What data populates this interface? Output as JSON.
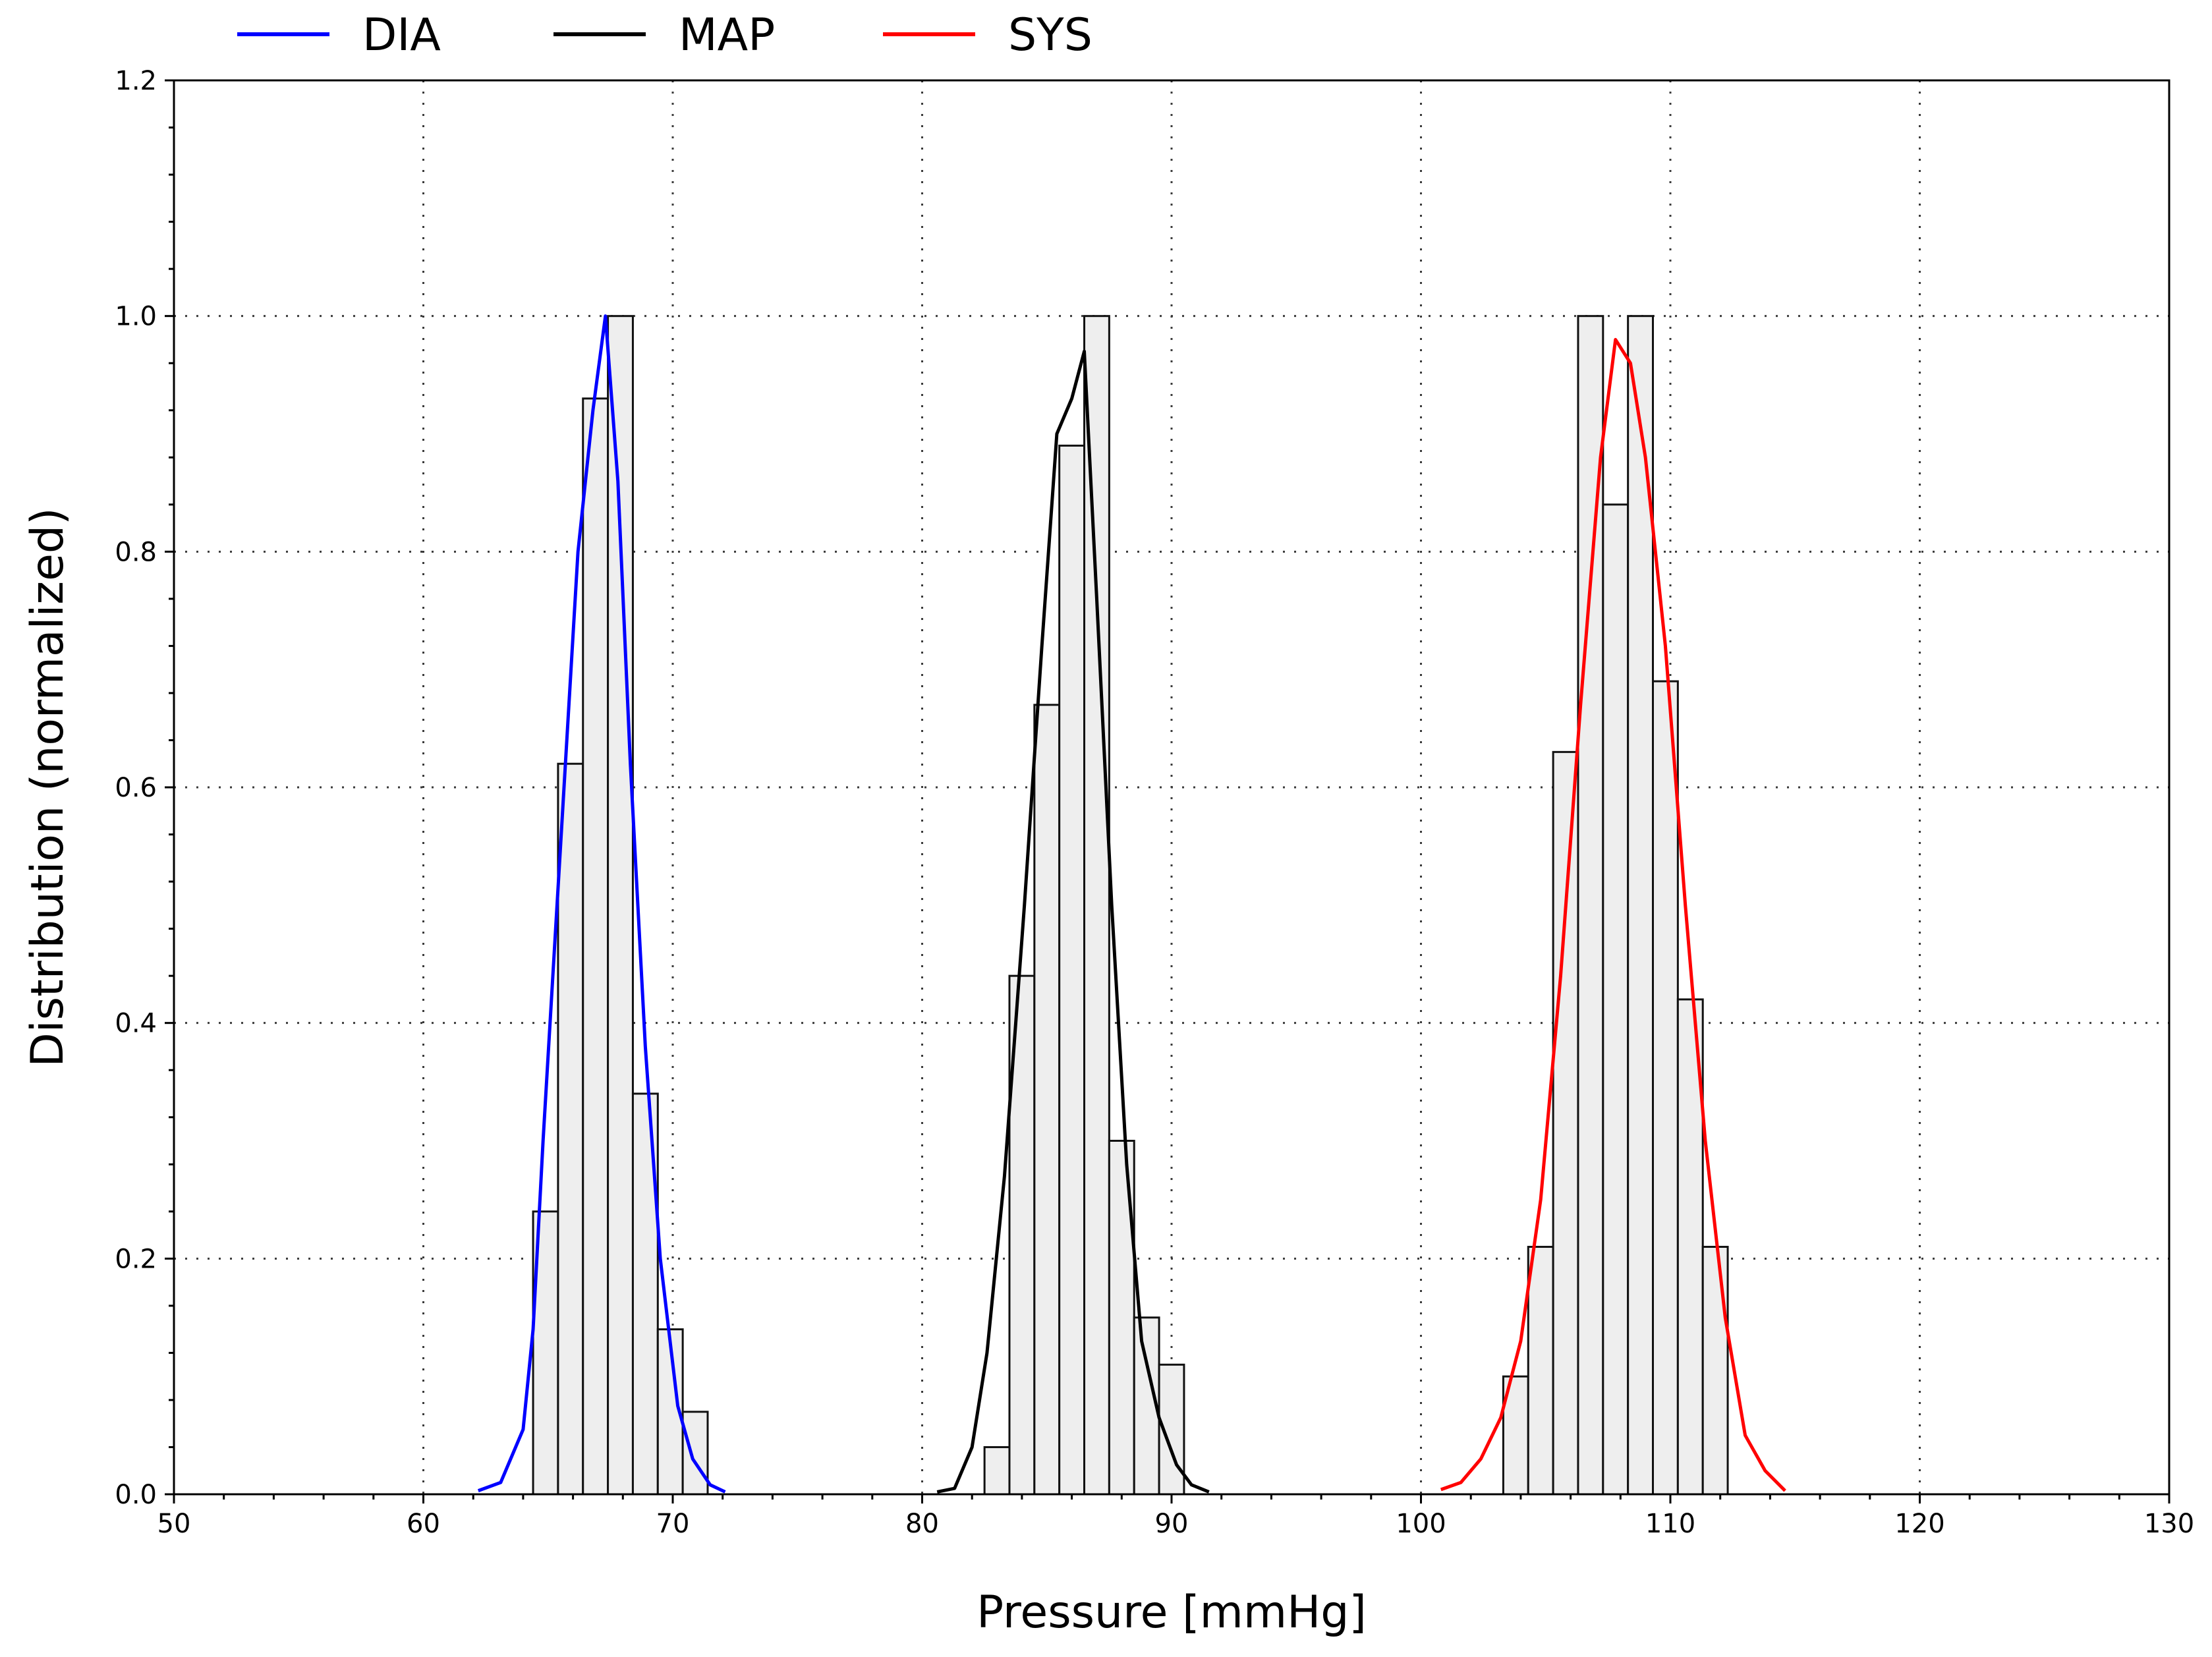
{
  "chart_data": {
    "type": "histogram_with_lines",
    "title": "",
    "xlabel": "Pressure [mmHg]",
    "ylabel": "Distribution (normalized)",
    "xlim": [
      50,
      130
    ],
    "ylim": [
      0,
      1.2
    ],
    "grid": true,
    "legend_position": "top",
    "x_ticks": [
      50,
      60,
      70,
      80,
      90,
      100,
      110,
      120,
      130
    ],
    "y_ticks": [
      0.0,
      0.2,
      0.4,
      0.6,
      0.8,
      1.0,
      1.2
    ],
    "x_tick_labels": [
      "50",
      "60",
      "70",
      "80",
      "90",
      "100",
      "110",
      "120",
      "130"
    ],
    "y_tick_labels": [
      "0.0",
      "0.2",
      "0.4",
      "0.6",
      "0.8",
      "1.0",
      "1.2"
    ],
    "histograms": [
      {
        "name": "DIA bins",
        "bin_width": 1.0,
        "bins": [
          {
            "start": 64.4,
            "value": 0.24
          },
          {
            "start": 65.4,
            "value": 0.62
          },
          {
            "start": 66.4,
            "value": 0.93
          },
          {
            "start": 67.4,
            "value": 1.0
          },
          {
            "start": 68.4,
            "value": 0.34
          },
          {
            "start": 69.4,
            "value": 0.14
          },
          {
            "start": 70.4,
            "value": 0.07
          }
        ]
      },
      {
        "name": "MAP bins",
        "bin_width": 1.0,
        "bins": [
          {
            "start": 82.5,
            "value": 0.04
          },
          {
            "start": 83.5,
            "value": 0.44
          },
          {
            "start": 84.5,
            "value": 0.67
          },
          {
            "start": 85.5,
            "value": 0.89
          },
          {
            "start": 86.5,
            "value": 1.0
          },
          {
            "start": 87.5,
            "value": 0.3
          },
          {
            "start": 88.5,
            "value": 0.15
          },
          {
            "start": 89.5,
            "value": 0.11
          }
        ]
      },
      {
        "name": "SYS bins",
        "bin_width": 1.0,
        "bins": [
          {
            "start": 103.3,
            "value": 0.1
          },
          {
            "start": 104.3,
            "value": 0.21
          },
          {
            "start": 105.3,
            "value": 0.63
          },
          {
            "start": 106.3,
            "value": 1.0
          },
          {
            "start": 107.3,
            "value": 0.84
          },
          {
            "start": 108.3,
            "value": 1.0
          },
          {
            "start": 109.3,
            "value": 0.69
          },
          {
            "start": 110.3,
            "value": 0.42
          },
          {
            "start": 111.3,
            "value": 0.21
          }
        ]
      }
    ],
    "series": [
      {
        "name": "DIA",
        "color": "#0000ff",
        "x": [
          62.2,
          63.1,
          64.0,
          64.4,
          64.8,
          65.5,
          66.2,
          66.8,
          67.3,
          67.8,
          68.3,
          68.9,
          69.5,
          70.2,
          70.8,
          71.5,
          72.1
        ],
        "y": [
          0.003,
          0.01,
          0.055,
          0.14,
          0.3,
          0.55,
          0.8,
          0.92,
          1.0,
          0.86,
          0.62,
          0.38,
          0.2,
          0.075,
          0.03,
          0.008,
          0.002
        ]
      },
      {
        "name": "MAP",
        "color": "#000000",
        "x": [
          80.6,
          81.3,
          82.0,
          82.6,
          83.3,
          84.1,
          84.8,
          85.4,
          86.0,
          86.5,
          87.0,
          87.6,
          88.2,
          88.8,
          89.5,
          90.2,
          90.8,
          91.5
        ],
        "y": [
          0.002,
          0.005,
          0.04,
          0.12,
          0.27,
          0.5,
          0.72,
          0.9,
          0.93,
          0.97,
          0.76,
          0.5,
          0.28,
          0.13,
          0.065,
          0.025,
          0.008,
          0.002
        ]
      },
      {
        "name": "SYS",
        "color": "#ff0000",
        "x": [
          100.8,
          101.6,
          102.4,
          103.2,
          104.0,
          104.8,
          105.6,
          106.4,
          107.2,
          107.8,
          108.4,
          109.0,
          109.8,
          110.6,
          111.4,
          112.2,
          113.0,
          113.8,
          114.6
        ],
        "y": [
          0.004,
          0.01,
          0.03,
          0.065,
          0.13,
          0.25,
          0.44,
          0.67,
          0.88,
          0.98,
          0.96,
          0.88,
          0.72,
          0.5,
          0.3,
          0.15,
          0.05,
          0.02,
          0.003
        ]
      }
    ]
  }
}
